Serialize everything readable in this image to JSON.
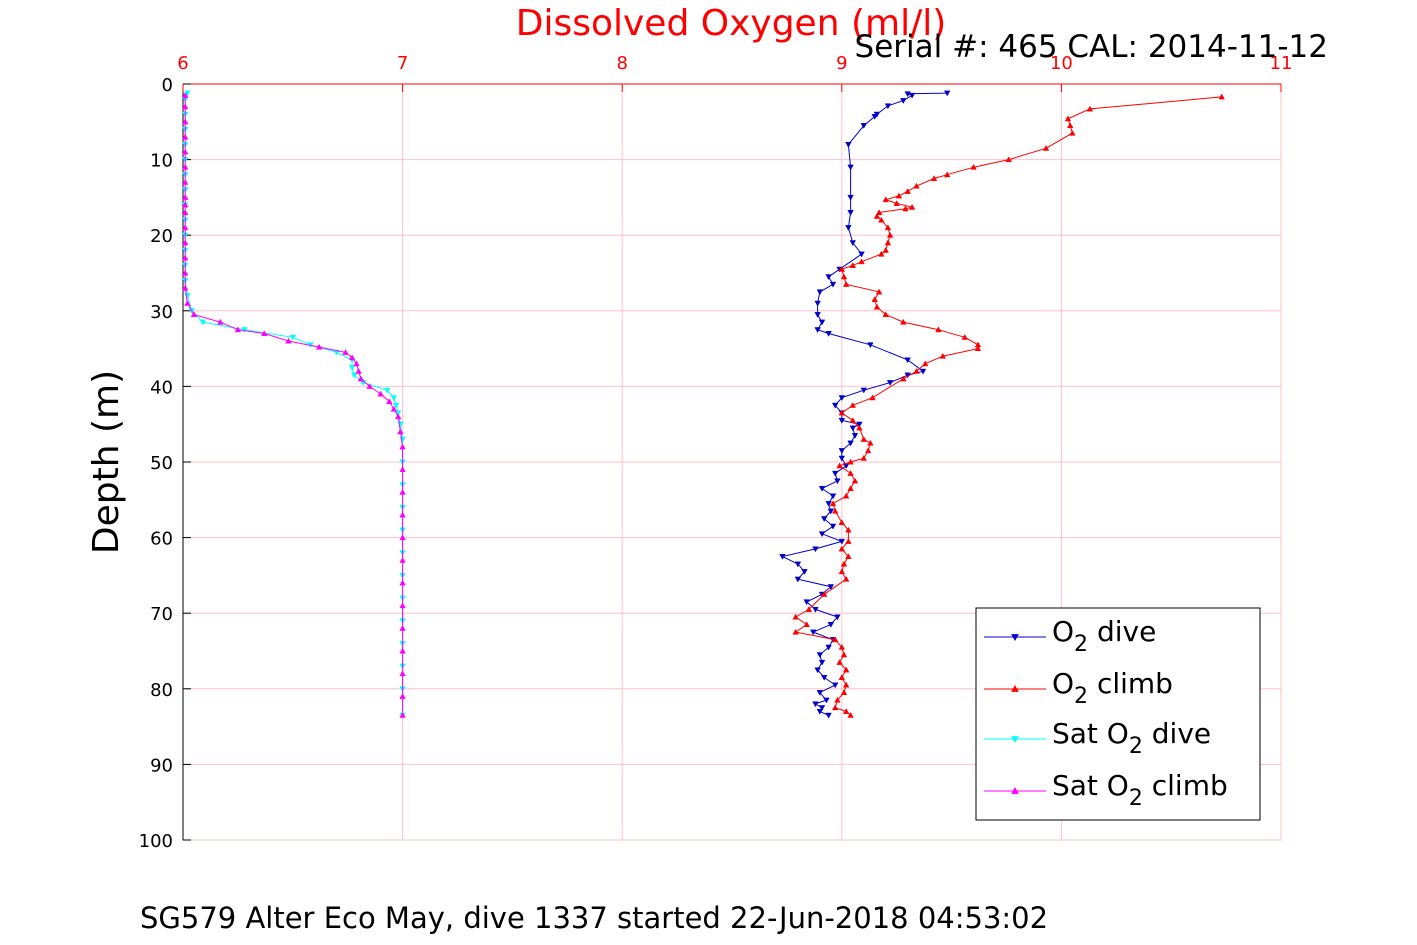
{
  "colors": {
    "o2_dive": "#0000cc",
    "o2_climb": "#ff0000",
    "sat_dive": "#00ffff",
    "sat_climb": "#ff00ff",
    "grid": "#ffc0cb",
    "top_axis": "#ff0000"
  },
  "chart_data": {
    "type": "line",
    "title": "Dissolved Oxygen (ml/l)",
    "subtitle": "Serial #: 465  CAL: 2014-11-12",
    "caption": "SG579 Alter Eco May, dive 1337 started 22-Jun-2018 04:53:02",
    "xlabel": "",
    "ylabel": "Depth (m)",
    "xlim": [
      6,
      11
    ],
    "ylim": [
      0,
      100
    ],
    "y_reversed": true,
    "x_axis_position": "top",
    "grid": true,
    "legend_position": "bottom-right",
    "x_ticks": [
      "6",
      "7",
      "8",
      "9",
      "10",
      "11"
    ],
    "y_ticks": [
      "0",
      "10",
      "20",
      "30",
      "40",
      "50",
      "60",
      "70",
      "80",
      "90",
      "100"
    ],
    "series": [
      {
        "name": "O2 dive",
        "legend": {
          "pre": "O",
          "sub": "2",
          "post": " dive"
        },
        "color_key": "o2_dive",
        "marker": "triangle-down",
        "points": [
          [
            9.48,
            1.2
          ],
          [
            9.3,
            1.3
          ],
          [
            9.32,
            1.5
          ],
          [
            9.28,
            2.2
          ],
          [
            9.21,
            2.9
          ],
          [
            9.16,
            4.0
          ],
          [
            9.15,
            4.3
          ],
          [
            9.1,
            5.5
          ],
          [
            9.03,
            8.0
          ],
          [
            9.04,
            11.0
          ],
          [
            9.04,
            15.0
          ],
          [
            9.04,
            17.0
          ],
          [
            9.03,
            19.0
          ],
          [
            9.05,
            21.0
          ],
          [
            9.09,
            22.5
          ],
          [
            8.99,
            24.5
          ],
          [
            8.94,
            25.5
          ],
          [
            8.96,
            26.5
          ],
          [
            8.9,
            27.5
          ],
          [
            8.89,
            29.0
          ],
          [
            8.89,
            30.5
          ],
          [
            8.91,
            31.5
          ],
          [
            8.89,
            32.5
          ],
          [
            8.94,
            33.0
          ],
          [
            9.13,
            34.5
          ],
          [
            9.3,
            36.5
          ],
          [
            9.37,
            38.0
          ],
          [
            9.3,
            38.5
          ],
          [
            9.22,
            39.5
          ],
          [
            9.1,
            40.5
          ],
          [
            9.0,
            41.5
          ],
          [
            8.97,
            42.5
          ],
          [
            9.0,
            43.5
          ],
          [
            9.0,
            44.5
          ],
          [
            9.08,
            45.0
          ],
          [
            9.05,
            45.5
          ],
          [
            9.06,
            46.5
          ],
          [
            9.04,
            47.5
          ],
          [
            9.0,
            48.5
          ],
          [
            9.0,
            49.5
          ],
          [
            9.02,
            50.5
          ],
          [
            8.97,
            51.5
          ],
          [
            8.98,
            52.5
          ],
          [
            8.91,
            53.5
          ],
          [
            8.96,
            54.5
          ],
          [
            8.94,
            55.5
          ],
          [
            8.95,
            56.5
          ],
          [
            8.92,
            57.5
          ],
          [
            8.96,
            58.5
          ],
          [
            8.91,
            59.5
          ],
          [
            9.0,
            60.5
          ],
          [
            8.88,
            61.5
          ],
          [
            8.73,
            62.5
          ],
          [
            8.8,
            63.5
          ],
          [
            8.83,
            64.5
          ],
          [
            8.8,
            65.5
          ],
          [
            8.95,
            66.5
          ],
          [
            8.91,
            67.5
          ],
          [
            8.84,
            68.5
          ],
          [
            8.88,
            69.5
          ],
          [
            8.98,
            70.5
          ],
          [
            8.95,
            71.5
          ],
          [
            8.87,
            72.5
          ],
          [
            8.96,
            73.5
          ],
          [
            8.94,
            74.5
          ],
          [
            8.9,
            75.5
          ],
          [
            8.91,
            76.5
          ],
          [
            8.89,
            77.5
          ],
          [
            8.92,
            78.5
          ],
          [
            8.97,
            79.5
          ],
          [
            8.9,
            80.5
          ],
          [
            8.93,
            81.5
          ],
          [
            8.88,
            82.0
          ],
          [
            8.91,
            82.5
          ],
          [
            8.9,
            83.0
          ],
          [
            8.94,
            83.5
          ]
        ]
      },
      {
        "name": "O2 climb",
        "legend": {
          "pre": "O",
          "sub": "2",
          "post": " climb"
        },
        "color_key": "o2_climb",
        "marker": "triangle-up",
        "points": [
          [
            10.73,
            1.7
          ],
          [
            10.13,
            3.3
          ],
          [
            10.03,
            4.6
          ],
          [
            10.04,
            5.5
          ],
          [
            10.05,
            6.5
          ],
          [
            9.93,
            8.5
          ],
          [
            9.76,
            10.0
          ],
          [
            9.6,
            11.0
          ],
          [
            9.48,
            12.0
          ],
          [
            9.42,
            12.5
          ],
          [
            9.34,
            13.5
          ],
          [
            9.3,
            14.2
          ],
          [
            9.26,
            14.8
          ],
          [
            9.2,
            15.3
          ],
          [
            9.25,
            15.8
          ],
          [
            9.32,
            16.3
          ],
          [
            9.29,
            16.5
          ],
          [
            9.17,
            17.0
          ],
          [
            9.16,
            17.5
          ],
          [
            9.18,
            18.0
          ],
          [
            9.21,
            19.0
          ],
          [
            9.22,
            20.0
          ],
          [
            9.21,
            21.0
          ],
          [
            9.2,
            22.0
          ],
          [
            9.18,
            22.5
          ],
          [
            9.09,
            23.5
          ],
          [
            9.05,
            24.0
          ],
          [
            9.0,
            24.5
          ],
          [
            9.01,
            25.5
          ],
          [
            9.02,
            26.5
          ],
          [
            9.17,
            27.5
          ],
          [
            9.15,
            28.5
          ],
          [
            9.16,
            29.5
          ],
          [
            9.2,
            30.5
          ],
          [
            9.28,
            31.5
          ],
          [
            9.44,
            32.5
          ],
          [
            9.56,
            33.5
          ],
          [
            9.62,
            34.5
          ],
          [
            9.62,
            35.0
          ],
          [
            9.46,
            36.0
          ],
          [
            9.38,
            37.0
          ],
          [
            9.34,
            38.0
          ],
          [
            9.28,
            39.0
          ],
          [
            9.14,
            41.5
          ],
          [
            9.05,
            42.5
          ],
          [
            9.0,
            43.5
          ],
          [
            9.05,
            44.5
          ],
          [
            9.08,
            45.5
          ],
          [
            9.1,
            47.0
          ],
          [
            9.13,
            47.5
          ],
          [
            9.12,
            48.5
          ],
          [
            9.1,
            49.5
          ],
          [
            9.04,
            50.0
          ],
          [
            8.99,
            50.5
          ],
          [
            9.04,
            51.5
          ],
          [
            9.06,
            52.5
          ],
          [
            9.04,
            53.5
          ],
          [
            9.02,
            54.5
          ],
          [
            8.96,
            55.5
          ],
          [
            8.97,
            56.5
          ],
          [
            9.0,
            58.0
          ],
          [
            9.03,
            59.0
          ],
          [
            9.03,
            60.5
          ],
          [
            9.0,
            61.5
          ],
          [
            9.03,
            62.5
          ],
          [
            9.01,
            63.5
          ],
          [
            9.0,
            64.5
          ],
          [
            9.02,
            65.5
          ],
          [
            8.92,
            67.5
          ],
          [
            8.85,
            69.5
          ],
          [
            8.79,
            70.5
          ],
          [
            8.84,
            71.5
          ],
          [
            8.79,
            72.5
          ],
          [
            8.97,
            73.5
          ],
          [
            9.0,
            74.5
          ],
          [
            9.01,
            75.5
          ],
          [
            8.99,
            76.5
          ],
          [
            9.02,
            77.5
          ],
          [
            9.0,
            78.5
          ],
          [
            9.02,
            79.5
          ],
          [
            9.01,
            80.5
          ],
          [
            8.98,
            81.5
          ],
          [
            8.97,
            82.5
          ],
          [
            9.02,
            83.0
          ],
          [
            9.04,
            83.5
          ]
        ]
      },
      {
        "name": "Sat O2 dive",
        "legend": {
          "pre": "Sat O",
          "sub": "2",
          "post": " dive"
        },
        "color_key": "sat_dive",
        "marker": "triangle-down",
        "points": [
          [
            6.02,
            1.2
          ],
          [
            6.01,
            2.0
          ],
          [
            6.01,
            4.0
          ],
          [
            6.01,
            6.0
          ],
          [
            6.01,
            8.0
          ],
          [
            6.01,
            10.0
          ],
          [
            6.01,
            12.0
          ],
          [
            6.01,
            14.0
          ],
          [
            6.01,
            16.0
          ],
          [
            6.01,
            18.0
          ],
          [
            6.01,
            20.0
          ],
          [
            6.01,
            22.0
          ],
          [
            6.01,
            24.0
          ],
          [
            6.01,
            26.0
          ],
          [
            6.02,
            28.0
          ],
          [
            6.04,
            30.0
          ],
          [
            6.09,
            31.5
          ],
          [
            6.28,
            32.5
          ],
          [
            6.5,
            33.5
          ],
          [
            6.58,
            34.5
          ],
          [
            6.7,
            35.5
          ],
          [
            6.77,
            36.5
          ],
          [
            6.77,
            37.5
          ],
          [
            6.78,
            38.5
          ],
          [
            6.82,
            39.5
          ],
          [
            6.93,
            40.5
          ],
          [
            6.96,
            41.5
          ],
          [
            6.97,
            42.5
          ],
          [
            6.98,
            43.5
          ],
          [
            6.99,
            45.0
          ],
          [
            7.0,
            47.0
          ],
          [
            7.0,
            50.0
          ],
          [
            7.0,
            53.0
          ],
          [
            7.0,
            56.0
          ],
          [
            7.0,
            59.0
          ],
          [
            7.0,
            62.0
          ],
          [
            7.0,
            65.0
          ],
          [
            7.0,
            68.0
          ],
          [
            7.0,
            71.0
          ],
          [
            7.0,
            74.0
          ],
          [
            7.0,
            77.0
          ],
          [
            7.0,
            80.0
          ],
          [
            7.0,
            83.5
          ]
        ]
      },
      {
        "name": "Sat O2 climb",
        "legend": {
          "pre": "Sat O",
          "sub": "2",
          "post": " climb"
        },
        "color_key": "sat_climb",
        "marker": "triangle-up",
        "points": [
          [
            6.01,
            1.5
          ],
          [
            6.01,
            3.0
          ],
          [
            6.01,
            5.0
          ],
          [
            6.01,
            7.0
          ],
          [
            6.01,
            9.0
          ],
          [
            6.01,
            11.0
          ],
          [
            6.01,
            13.0
          ],
          [
            6.01,
            15.0
          ],
          [
            6.01,
            16.0
          ],
          [
            6.01,
            17.0
          ],
          [
            6.01,
            19.0
          ],
          [
            6.01,
            21.0
          ],
          [
            6.01,
            23.0
          ],
          [
            6.01,
            25.0
          ],
          [
            6.01,
            27.0
          ],
          [
            6.02,
            29.0
          ],
          [
            6.05,
            30.5
          ],
          [
            6.17,
            31.5
          ],
          [
            6.25,
            32.5
          ],
          [
            6.37,
            33.0
          ],
          [
            6.48,
            34.0
          ],
          [
            6.62,
            34.8
          ],
          [
            6.74,
            35.5
          ],
          [
            6.77,
            36.2
          ],
          [
            6.79,
            37.0
          ],
          [
            6.8,
            38.0
          ],
          [
            6.81,
            39.0
          ],
          [
            6.85,
            40.0
          ],
          [
            6.9,
            41.0
          ],
          [
            6.94,
            42.0
          ],
          [
            6.96,
            43.0
          ],
          [
            6.98,
            44.0
          ],
          [
            6.99,
            46.0
          ],
          [
            7.0,
            48.0
          ],
          [
            7.0,
            51.0
          ],
          [
            7.0,
            54.0
          ],
          [
            7.0,
            57.0
          ],
          [
            7.0,
            60.0
          ],
          [
            7.0,
            63.0
          ],
          [
            7.0,
            66.0
          ],
          [
            7.0,
            69.0
          ],
          [
            7.0,
            72.0
          ],
          [
            7.0,
            75.0
          ],
          [
            7.0,
            78.0
          ],
          [
            7.0,
            81.0
          ],
          [
            7.0,
            83.5
          ]
        ]
      }
    ]
  }
}
